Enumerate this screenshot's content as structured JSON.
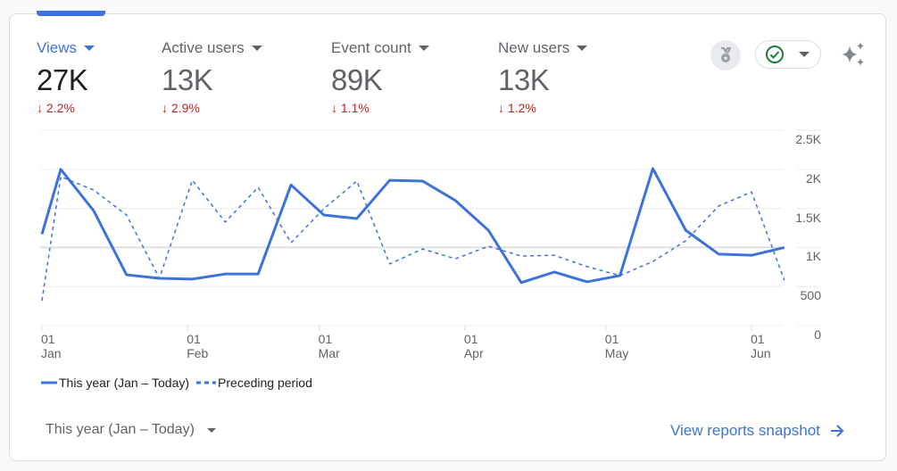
{
  "metrics": [
    {
      "label": "Views",
      "value": "27K",
      "delta": "2.2%",
      "active": true
    },
    {
      "label": "Active users",
      "value": "13K",
      "delta": "2.9%"
    },
    {
      "label": "Event count",
      "value": "89K",
      "delta": "1.1%"
    },
    {
      "label": "New users",
      "value": "13K",
      "delta": "1.2%"
    }
  ],
  "icons": {
    "badge": "medal-icon",
    "status": "check-circle-icon",
    "insights": "sparkle-icon",
    "delta": "arrow-down-icon",
    "link": "arrow-right-icon"
  },
  "colors": {
    "accent": "#3c73db",
    "negative": "#c5221f",
    "check": "#188038"
  },
  "chart_data": {
    "type": "line",
    "x": [
      "Jan 01",
      "Jan 05",
      "Jan 12",
      "Jan 19",
      "Jan 26",
      "Feb 02",
      "Feb 09",
      "Feb 16",
      "Feb 23",
      "Mar 02",
      "Mar 09",
      "Mar 16",
      "Mar 23",
      "Mar 30",
      "Apr 06",
      "Apr 13",
      "Apr 20",
      "Apr 27",
      "May 04",
      "May 11",
      "May 18",
      "May 25",
      "Jun 01",
      "Jun 08"
    ],
    "series": [
      {
        "name": "This year (Jan – Today)",
        "style": "solid",
        "values": [
          1170,
          2000,
          1470,
          650,
          605,
          595,
          660,
          660,
          1800,
          1415,
          1370,
          1860,
          1850,
          1600,
          1220,
          550,
          685,
          560,
          640,
          2010,
          1220,
          915,
          900,
          1000
        ]
      },
      {
        "name": "Preceding period",
        "style": "dashed",
        "values": [
          320,
          1905,
          1735,
          1415,
          605,
          1860,
          1325,
          1770,
          1060,
          1495,
          1850,
          790,
          980,
          855,
          1015,
          890,
          900,
          755,
          640,
          820,
          1085,
          1530,
          1710,
          580
        ]
      }
    ],
    "y_ticks": [
      "0",
      "500",
      "1K",
      "1.5K",
      "2K",
      "2.5K"
    ],
    "ylim": [
      0,
      2500
    ],
    "x_ticks": [
      {
        "day": "01",
        "month": "Jan",
        "date": "Jan 01"
      },
      {
        "day": "01",
        "month": "Feb",
        "date": "Feb 01"
      },
      {
        "day": "01",
        "month": "Mar",
        "date": "Mar 01"
      },
      {
        "day": "01",
        "month": "Apr",
        "date": "Apr 01"
      },
      {
        "day": "01",
        "month": "May",
        "date": "May 01"
      },
      {
        "day": "01",
        "month": "Jun",
        "date": "Jun 01"
      }
    ],
    "grid": true,
    "legend_position": "bottom-left"
  },
  "footer": {
    "range_label": "This year (Jan – Today)",
    "snapshot_link": "View reports snapshot"
  }
}
